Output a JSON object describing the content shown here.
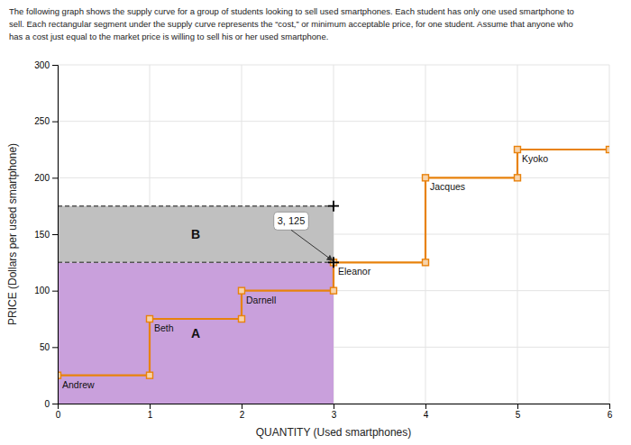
{
  "chart_data": {
    "type": "line",
    "title": "The following graph shows the supply curve for a group of students looking to sell used smartphones. Each student has only one used smartphone to\nsell. Each rectangular segment under the supply curve represents the “cost,” or minimum acceptable price, for one student. Assume that anyone who\nhas a cost just equal to the market price is willing to sell his or her used smartphone.",
    "x_label": "QUANTITY (Used smartphones)",
    "y_label": "PRICE (Dollars per used smartphone)",
    "x": [
      0,
      1,
      1,
      2,
      2,
      3,
      3,
      4,
      4,
      5,
      5,
      6
    ],
    "values": [
      25,
      25,
      75,
      75,
      100,
      100,
      125,
      125,
      200,
      200,
      225,
      225
    ],
    "color": "#E8820C",
    "marker": "square",
    "students": [
      "Andrew",
      "Beth",
      "Darnell",
      "Eleanor",
      "Jacques",
      "Kyoko"
    ],
    "areas": [
      {
        "label": "A",
        "color": "#C9A0DC",
        "x": [
          0,
          3
        ],
        "values": [
          0,
          125
        ]
      },
      {
        "label": "B",
        "color": "#C0C0C0",
        "x": [
          0,
          3
        ],
        "values": [
          125,
          175
        ]
      }
    ],
    "annotations": [
      {
        "text": "3, 125",
        "x": 3,
        "y": 125
      }
    ],
    "xlim": [
      0,
      6
    ],
    "ylim": [
      0,
      300
    ],
    "xticks": [
      0,
      1,
      2,
      3,
      4,
      5,
      6
    ],
    "yticks": [
      0,
      50,
      100,
      150,
      200,
      250,
      300
    ],
    "grid": true
  }
}
